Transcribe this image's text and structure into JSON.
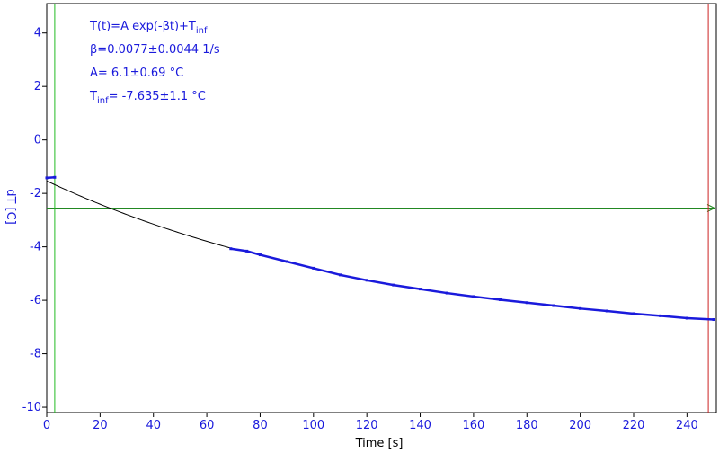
{
  "chart_data": {
    "type": "scatter",
    "xlabel": "Time [s]",
    "ylabel": "dT [C]",
    "xlim": [
      0,
      251
    ],
    "ylim": [
      -10.2,
      5.1
    ],
    "x_ticks": [
      0,
      20,
      40,
      60,
      80,
      100,
      120,
      140,
      160,
      180,
      200,
      220,
      240
    ],
    "y_ticks": [
      4,
      2,
      0,
      -2,
      -4,
      -6,
      -8,
      -10
    ],
    "grid": false,
    "annotations": {
      "model": "T(t)=A exp(-βt)+T",
      "model_sub": "inf",
      "beta": "β=0.0077±0.0044 1/s",
      "amp": "A= 6.1±0.69 °C",
      "tinf_prefix": "T",
      "tinf_sub": "inf",
      "tinf_value": "= -7.635±1.1 °C"
    },
    "fit": {
      "A": 6.1,
      "beta": 0.0077,
      "tinf": -7.635,
      "x_range": [
        0,
        69
      ]
    },
    "series": [
      {
        "values": [
          {
            "x": 0,
            "y": -1.42
          },
          {
            "x": 3,
            "y": -1.4
          },
          {
            "x": 69,
            "y": -4.07
          },
          {
            "x": 75,
            "y": -4.16
          },
          {
            "x": 80,
            "y": -4.3
          },
          {
            "x": 90,
            "y": -4.55
          },
          {
            "x": 100,
            "y": -4.8
          },
          {
            "x": 110,
            "y": -5.05
          },
          {
            "x": 120,
            "y": -5.25
          },
          {
            "x": 130,
            "y": -5.43
          },
          {
            "x": 140,
            "y": -5.58
          },
          {
            "x": 150,
            "y": -5.73
          },
          {
            "x": 160,
            "y": -5.86
          },
          {
            "x": 170,
            "y": -5.98
          },
          {
            "x": 180,
            "y": -6.09
          },
          {
            "x": 190,
            "y": -6.2
          },
          {
            "x": 200,
            "y": -6.31
          },
          {
            "x": 210,
            "y": -6.4
          },
          {
            "x": 220,
            "y": -6.5
          },
          {
            "x": 230,
            "y": -6.58
          },
          {
            "x": 240,
            "y": -6.67
          },
          {
            "x": 250,
            "y": -6.72
          }
        ]
      }
    ],
    "h_marker": {
      "y": -2.55
    },
    "v_markers": [
      {
        "x": 3,
        "color": "#22bb22"
      },
      {
        "x": 248,
        "color": "#cc2222"
      }
    ],
    "colors": {
      "data": "#1a1adc",
      "fit": "#000000",
      "h_marker": "#228822",
      "axis": "#000000",
      "text": "#1a1adc",
      "xlabel": "#000000"
    }
  }
}
